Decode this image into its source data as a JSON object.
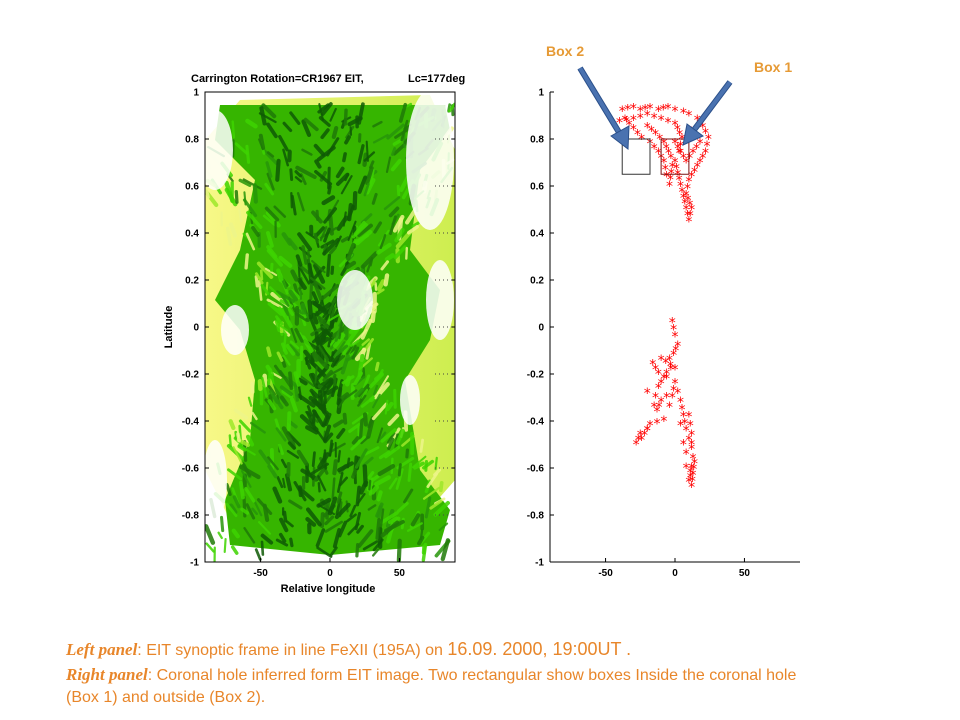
{
  "colors": {
    "caption": "#e8862a",
    "box_label": "#e69a35",
    "marker": "#ff0000",
    "arrow": "#4a72b0",
    "green_dark": "#0f5a05",
    "green_bright": "#3ed400",
    "yellow": "#f5f56a"
  },
  "chart_data": [
    {
      "type": "heatmap",
      "title": "Carrington Rotation=CR1967 EIT,",
      "title_right": "Lc=177deg",
      "xlabel": "Relative longitude",
      "ylabel": "Latitude",
      "xlim": [
        -90,
        90
      ],
      "ylim": [
        -1,
        1
      ],
      "xticks": [
        -50,
        0,
        50
      ],
      "yticks": [
        1,
        0.8,
        0.6,
        0.4,
        0.2,
        0,
        -0.2,
        -0.4,
        -0.6,
        -0.8,
        -1
      ],
      "colormap": "green-yellow"
    },
    {
      "type": "scatter",
      "xlim": [
        -90,
        90
      ],
      "ylim": [
        -1,
        1
      ],
      "xticks": [
        -50,
        0,
        50
      ],
      "yticks": [
        1,
        0.8,
        0.6,
        0.4,
        0.2,
        0,
        -0.2,
        -0.4,
        -0.6,
        -0.8,
        -1
      ],
      "marker": "*",
      "regions": [
        {
          "x": [
            -38,
            -30,
            -25,
            -18,
            -12,
            -5,
            0,
            6,
            10,
            16,
            20,
            24,
            22,
            18,
            14,
            10,
            8,
            12,
            10,
            8,
            6,
            4,
            2,
            0,
            -2,
            -4,
            -6,
            -8,
            -12,
            -18,
            -24,
            -30,
            -36,
            -40,
            -30,
            -20,
            -10,
            0,
            5,
            3,
            -3,
            -8,
            -14,
            -20,
            12,
            18,
            8,
            0
          ],
          "y": [
            0.92,
            0.93,
            0.92,
            0.93,
            0.92,
            0.93,
            0.92,
            0.91,
            0.9,
            0.88,
            0.85,
            0.8,
            0.74,
            0.7,
            0.66,
            0.62,
            0.56,
            0.5,
            0.45,
            0.5,
            0.55,
            0.6,
            0.65,
            0.7,
            0.68,
            0.6,
            0.64,
            0.7,
            0.74,
            0.78,
            0.8,
            0.84,
            0.88,
            0.87,
            0.88,
            0.9,
            0.88,
            0.86,
            0.8,
            0.74,
            0.72,
            0.78,
            0.82,
            0.85,
            0.83,
            0.78,
            0.7,
            0.78
          ]
        },
        {
          "x": [
            -2,
            0,
            2,
            -1,
            -4,
            -3,
            -6,
            -8,
            -10,
            -12,
            -14,
            -15,
            -13,
            -10,
            -6,
            -4,
            -2,
            0,
            2,
            4,
            6,
            8,
            10,
            12,
            13,
            12,
            11,
            10,
            12,
            14,
            12,
            11,
            10,
            12,
            11,
            -20,
            -25,
            -28,
            -24,
            -18,
            -8,
            -16,
            -12,
            -6,
            4,
            8,
            6,
            -20,
            -10,
            0,
            8
          ],
          "y": [
            0.02,
            -0.04,
            -0.08,
            -0.12,
            -0.14,
            -0.18,
            -0.2,
            -0.22,
            -0.24,
            -0.26,
            -0.3,
            -0.34,
            -0.36,
            -0.32,
            -0.3,
            -0.34,
            -0.3,
            -0.24,
            -0.28,
            -0.32,
            -0.38,
            -0.44,
            -0.48,
            -0.52,
            -0.56,
            -0.6,
            -0.64,
            -0.66,
            -0.68,
            -0.58,
            -0.46,
            -0.42,
            -0.38,
            -0.5,
            -0.62,
            -0.44,
            -0.46,
            -0.5,
            -0.48,
            -0.42,
            -0.4,
            -0.16,
            -0.2,
            -0.22,
            -0.42,
            -0.54,
            -0.5,
            -0.28,
            -0.14,
            -0.18,
            -0.6
          ]
        }
      ],
      "annotations": [
        {
          "label": "Box 1",
          "rect_x": [
            -10,
            10
          ],
          "rect_y": [
            0.65,
            0.8
          ]
        },
        {
          "label": "Box 2",
          "rect_x": [
            -38,
            -18
          ],
          "rect_y": [
            0.65,
            0.8
          ]
        }
      ]
    }
  ],
  "caption": {
    "line1_lead": "Left panel",
    "line1_text": ": EIT synoptic frame in line FeXII (195A) on ",
    "line1_date": "16.09. 2000, 19:00UT .",
    "line2_lead": "Right panel",
    "line2_text": ": Coronal hole inferred form EIT image. Two rectangular show boxes Inside the coronal hole (Box 1) and outside (Box 2)."
  }
}
